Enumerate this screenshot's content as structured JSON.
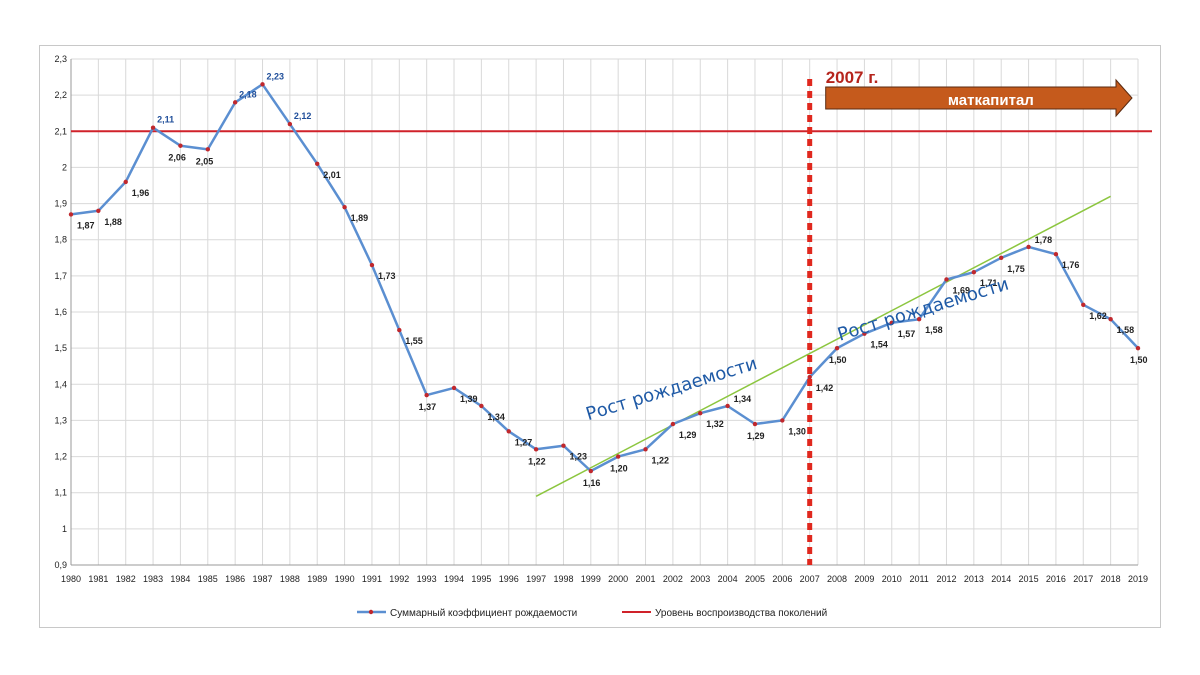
{
  "chart_data": {
    "type": "line",
    "x": [
      1980,
      1981,
      1982,
      1983,
      1984,
      1985,
      1986,
      1987,
      1988,
      1989,
      1990,
      1991,
      1992,
      1993,
      1994,
      1995,
      1996,
      1997,
      1998,
      1999,
      2000,
      2001,
      2002,
      2003,
      2004,
      2005,
      2006,
      2007,
      2008,
      2009,
      2010,
      2011,
      2012,
      2013,
      2014,
      2015,
      2016,
      2017,
      2018,
      2019
    ],
    "series": [
      {
        "name": "Суммарный коэффициент рождаемости",
        "color": "#5b8fd1",
        "values": [
          1.87,
          1.88,
          1.96,
          2.11,
          2.06,
          2.05,
          2.18,
          2.23,
          2.12,
          2.01,
          1.89,
          1.73,
          1.55,
          1.37,
          1.39,
          1.34,
          1.27,
          1.22,
          1.23,
          1.16,
          1.2,
          1.22,
          1.29,
          1.32,
          1.34,
          1.29,
          1.3,
          1.42,
          1.5,
          1.54,
          1.57,
          1.58,
          1.69,
          1.71,
          1.75,
          1.78,
          1.76,
          1.62,
          1.58,
          1.5
        ],
        "labels": [
          "1,87",
          "1,88",
          "1,96",
          "2,11",
          "2,06",
          "2,05",
          "2,18",
          "2,23",
          "2,12",
          "2,01",
          "1,89",
          "1,73",
          "1,55",
          "1,37",
          "1,39",
          "1,34",
          "1,27",
          "1,22",
          "1,23",
          "1,16",
          "1,20",
          "1,22",
          "1,29",
          "1,32",
          "1,34",
          "1,29",
          "1,30",
          "1,42",
          "1,50",
          "1,54",
          "1,57",
          "1,58",
          "1,69",
          "1,71",
          "1,75",
          "1,78",
          "1,76",
          "1,62",
          "1,58",
          "1,50"
        ]
      },
      {
        "name": "Уровень воспроизводства поколений",
        "color": "#d0222a",
        "value": 2.1
      }
    ],
    "ylim": [
      0.9,
      2.3
    ],
    "yticks": [
      "0,9",
      "1",
      "1,1",
      "1,2",
      "1,3",
      "1,4",
      "1,5",
      "1,6",
      "1,7",
      "1,8",
      "1,9",
      "2",
      "2,1",
      "2,2",
      "2,3"
    ],
    "grid": true,
    "legend_position": "bottom",
    "trendlines": [
      {
        "color": "#8cc63f",
        "x_start": 1997,
        "y_start": 1.09,
        "x_end": 2018,
        "y_end": 1.92
      }
    ],
    "annotations": {
      "trend_text_1": "Рост рождаемости",
      "trend_text_2": "Рост рождаемости",
      "marker_year": 2007,
      "marker_label": "2007 г.",
      "arrow_label": "маткапитал",
      "arrow_color": "#c55a1c",
      "marker_color": "#e0281e"
    }
  }
}
